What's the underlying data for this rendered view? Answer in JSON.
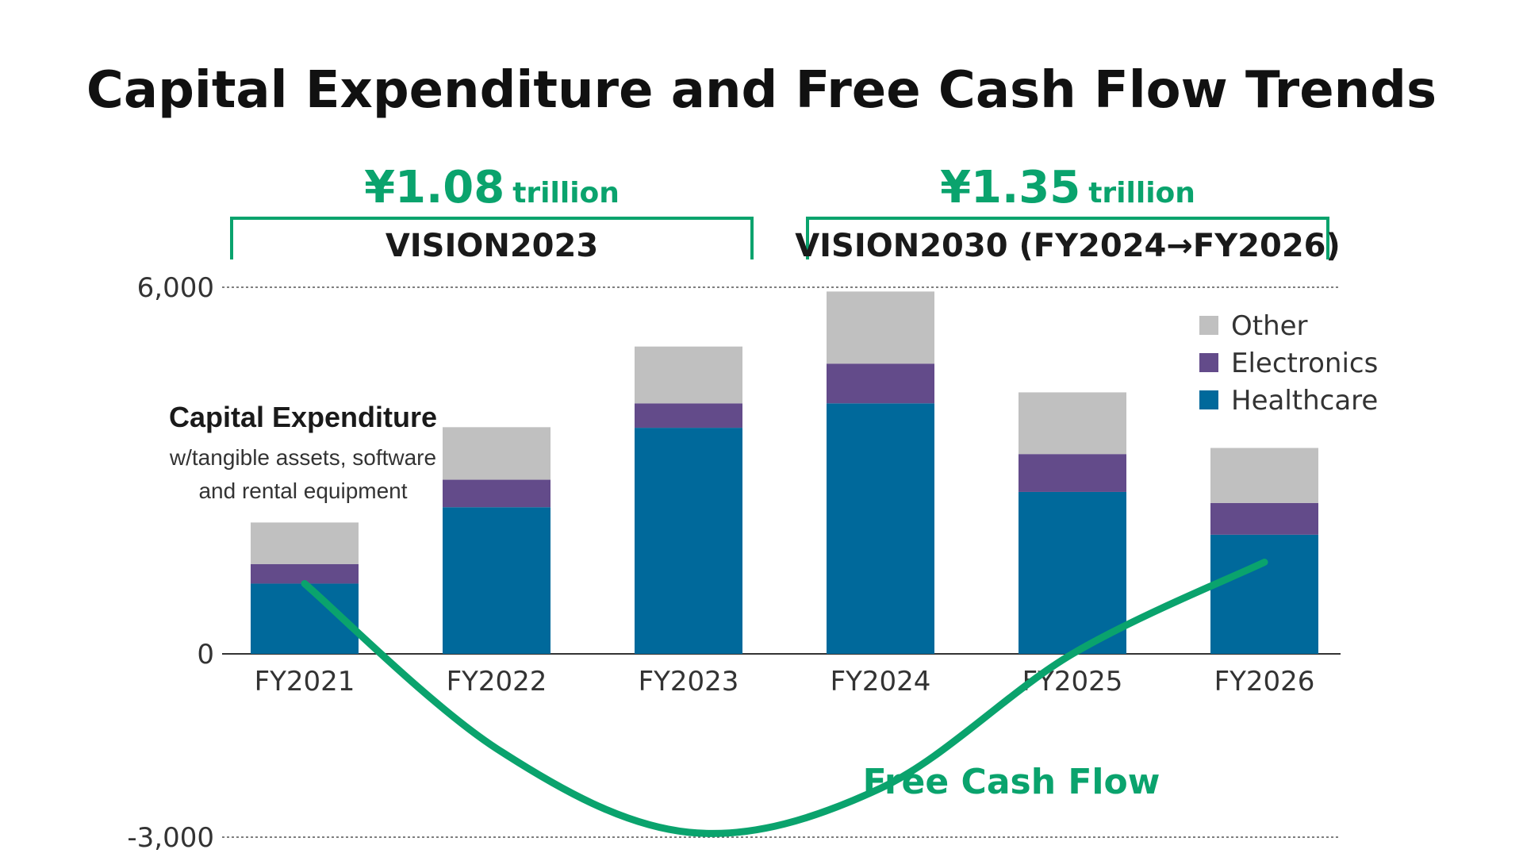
{
  "chart_data": {
    "type": "bar",
    "stacked": true,
    "title": "Capital Expenditure and Free Cash Flow Trends",
    "categories": [
      "FY2021",
      "FY2022",
      "FY2023",
      "FY2024",
      "FY2025",
      "FY2026"
    ],
    "series": [
      {
        "name": "Healthcare",
        "color": "#00699b",
        "values": [
          1150,
          2400,
          3700,
          4100,
          2650,
          1950
        ]
      },
      {
        "name": "Electronics",
        "color": "#634b8a",
        "values": [
          320,
          450,
          400,
          650,
          620,
          520
        ]
      },
      {
        "name": "Other",
        "color": "#c0c0c0",
        "values": [
          680,
          860,
          930,
          1180,
          1010,
          900
        ]
      }
    ],
    "legend_order": [
      "Other",
      "Electronics",
      "Healthcare"
    ],
    "legend_position": "top-right",
    "line_series": {
      "name": "Free Cash Flow",
      "label": "Free Cash Flow",
      "color": "#0aa36d",
      "smooth": true,
      "points": [
        {
          "x": "FY2021",
          "y": 1150
        },
        {
          "x": "FY2022",
          "y": -1550
        },
        {
          "x": "FY2023",
          "y": -2920
        },
        {
          "x": "FY2024",
          "y": -2200
        },
        {
          "x": "FY2025",
          "y": 0
        },
        {
          "x": "FY2026",
          "y": 1500
        }
      ]
    },
    "ylim": [
      -3000,
      6000
    ],
    "yticks": [
      {
        "value": 6000,
        "label": "6,000",
        "style": "dotted"
      },
      {
        "value": 0,
        "label": "0",
        "style": "solid"
      },
      {
        "value": -3000,
        "label": "-3,000",
        "style": "dotted"
      }
    ],
    "xlabel": "",
    "ylabel": "",
    "annotation": {
      "title": "Capital Expenditure",
      "lines": [
        "w/tangible assets, software",
        "and rental equipment"
      ]
    },
    "brackets": [
      {
        "name": "VISION2023",
        "amount": "¥1.08",
        "unit": "trillion",
        "from": "FY2021",
        "to": "FY2023"
      },
      {
        "name": "VISION2030 (FY2024→FY2026)",
        "amount": "¥1.35",
        "unit": "trillion",
        "from": "FY2024",
        "to": "FY2026"
      }
    ],
    "accent_color": "#0aa36d"
  }
}
